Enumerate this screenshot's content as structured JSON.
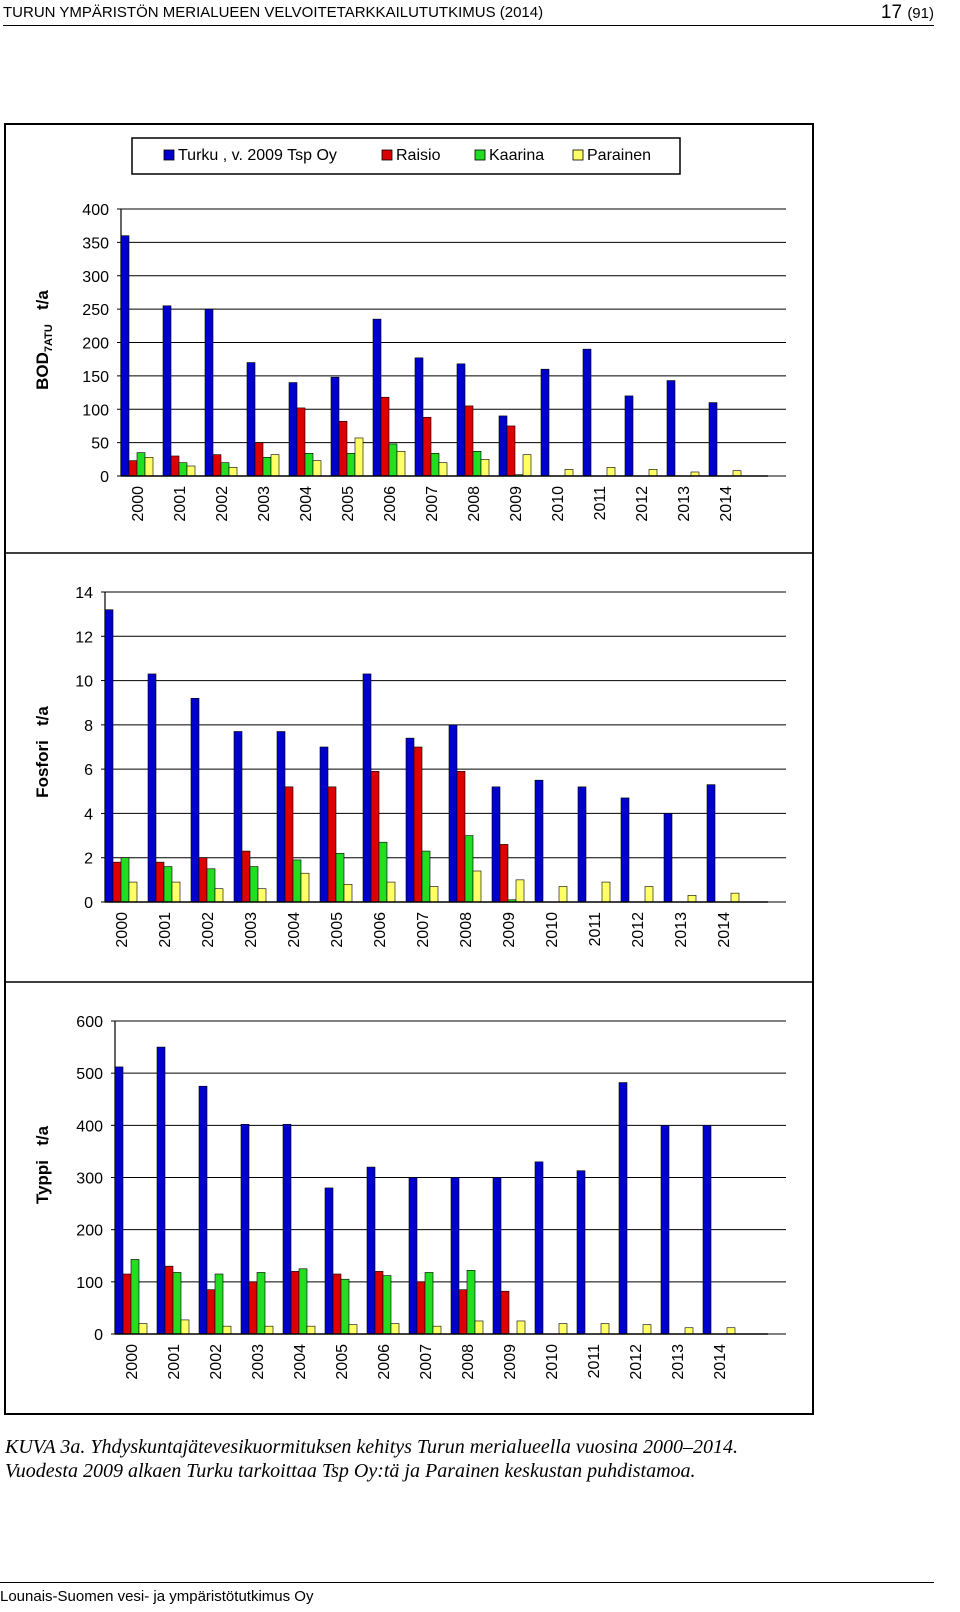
{
  "header": {
    "title": "TURUN YMPÄRISTÖN MERIALUEEN VELVOITETARKKAILUTUTKIMUS (2014)",
    "page_number": "17",
    "page_total": "(91)"
  },
  "caption": {
    "line1": "KUVA 3a. Yhdyskuntajätevesikuormituksen kehitys Turun merialueella vuosina 2000–2014.",
    "line2": "Vuodesta 2009 alkaen Turku tarkoittaa Tsp Oy:tä ja Parainen keskustan puhdistamoa."
  },
  "footer": {
    "text": "Lounais-Suomen vesi- ja ympäristötutkimus Oy"
  },
  "colors": {
    "Turku": "#0000CC",
    "Raisio": "#DD0000",
    "Kaarina": "#22DD22",
    "Parainen": "#FFFF66"
  },
  "legend": [
    "Turku , v. 2009 Tsp Oy",
    "Raisio",
    "Kaarina",
    "Parainen"
  ],
  "chart_data": [
    {
      "type": "bar",
      "ylabel_main": "BOD",
      "ylabel_sub": "7ATU",
      "ylabel_unit": "t/a",
      "ylim": [
        0,
        400
      ],
      "yticks": [
        0,
        50,
        100,
        150,
        200,
        250,
        300,
        350,
        400
      ],
      "categories": [
        "2000",
        "2001",
        "2002",
        "2003",
        "2004",
        "2005",
        "2006",
        "2007",
        "2008",
        "2009",
        "2010",
        "2011",
        "2012",
        "2013",
        "2014"
      ],
      "series": [
        {
          "name": "Turku , v. 2009 Tsp Oy",
          "values": [
            360,
            255,
            250,
            170,
            140,
            148,
            235,
            177,
            168,
            90,
            160,
            190,
            120,
            143,
            110
          ]
        },
        {
          "name": "Raisio",
          "values": [
            23,
            30,
            32,
            50,
            102,
            82,
            118,
            88,
            105,
            75,
            0,
            0,
            0,
            0,
            0
          ]
        },
        {
          "name": "Kaarina",
          "values": [
            35,
            20,
            20,
            28,
            34,
            34,
            48,
            34,
            37,
            2,
            0,
            0,
            0,
            0,
            0
          ]
        },
        {
          "name": "Parainen",
          "values": [
            28,
            15,
            13,
            32,
            23,
            57,
            37,
            20,
            25,
            32,
            10,
            13,
            10,
            6,
            8
          ]
        }
      ]
    },
    {
      "type": "bar",
      "ylabel_main": "Fosfori",
      "ylabel_sub": "",
      "ylabel_unit": "t/a",
      "ylim": [
        0,
        14
      ],
      "yticks": [
        0,
        2,
        4,
        6,
        8,
        10,
        12,
        14
      ],
      "categories": [
        "2000",
        "2001",
        "2002",
        "2003",
        "2004",
        "2005",
        "2006",
        "2007",
        "2008",
        "2009",
        "2010",
        "2011",
        "2012",
        "2013",
        "2014"
      ],
      "series": [
        {
          "name": "Turku , v. 2009 Tsp Oy",
          "values": [
            13.2,
            10.3,
            9.2,
            7.7,
            7.7,
            7.0,
            10.3,
            7.4,
            8.0,
            5.2,
            5.5,
            5.2,
            4.7,
            4.0,
            5.3
          ]
        },
        {
          "name": "Raisio",
          "values": [
            1.8,
            1.8,
            2.0,
            2.3,
            5.2,
            5.2,
            5.9,
            7.0,
            5.9,
            2.6,
            0,
            0,
            0,
            0,
            0
          ]
        },
        {
          "name": "Kaarina",
          "values": [
            2.0,
            1.6,
            1.5,
            1.6,
            1.9,
            2.2,
            2.7,
            2.3,
            3.0,
            0.1,
            0,
            0,
            0,
            0,
            0
          ]
        },
        {
          "name": "Parainen",
          "values": [
            0.9,
            0.9,
            0.6,
            0.6,
            1.3,
            0.8,
            0.9,
            0.7,
            1.4,
            1.0,
            0.7,
            0.9,
            0.7,
            0.3,
            0.4
          ]
        }
      ]
    },
    {
      "type": "bar",
      "ylabel_main": "Typpi",
      "ylabel_sub": "",
      "ylabel_unit": "t/a",
      "ylim": [
        0,
        600
      ],
      "yticks": [
        0,
        100,
        200,
        300,
        400,
        500,
        600
      ],
      "categories": [
        "2000",
        "2001",
        "2002",
        "2003",
        "2004",
        "2005",
        "2006",
        "2007",
        "2008",
        "2009",
        "2010",
        "2011",
        "2012",
        "2013",
        "2014"
      ],
      "series": [
        {
          "name": "Turku , v. 2009 Tsp Oy",
          "values": [
            512,
            550,
            475,
            402,
            402,
            280,
            320,
            300,
            300,
            300,
            330,
            313,
            482,
            400,
            400
          ]
        },
        {
          "name": "Raisio",
          "values": [
            115,
            130,
            85,
            100,
            120,
            115,
            120,
            100,
            85,
            82,
            0,
            0,
            0,
            0,
            0
          ]
        },
        {
          "name": "Kaarina",
          "values": [
            143,
            118,
            115,
            118,
            125,
            105,
            112,
            118,
            122,
            0,
            0,
            0,
            0,
            0,
            0
          ]
        },
        {
          "name": "Parainen",
          "values": [
            20,
            27,
            15,
            15,
            15,
            18,
            20,
            15,
            25,
            25,
            20,
            20,
            18,
            12,
            12
          ]
        }
      ]
    }
  ]
}
